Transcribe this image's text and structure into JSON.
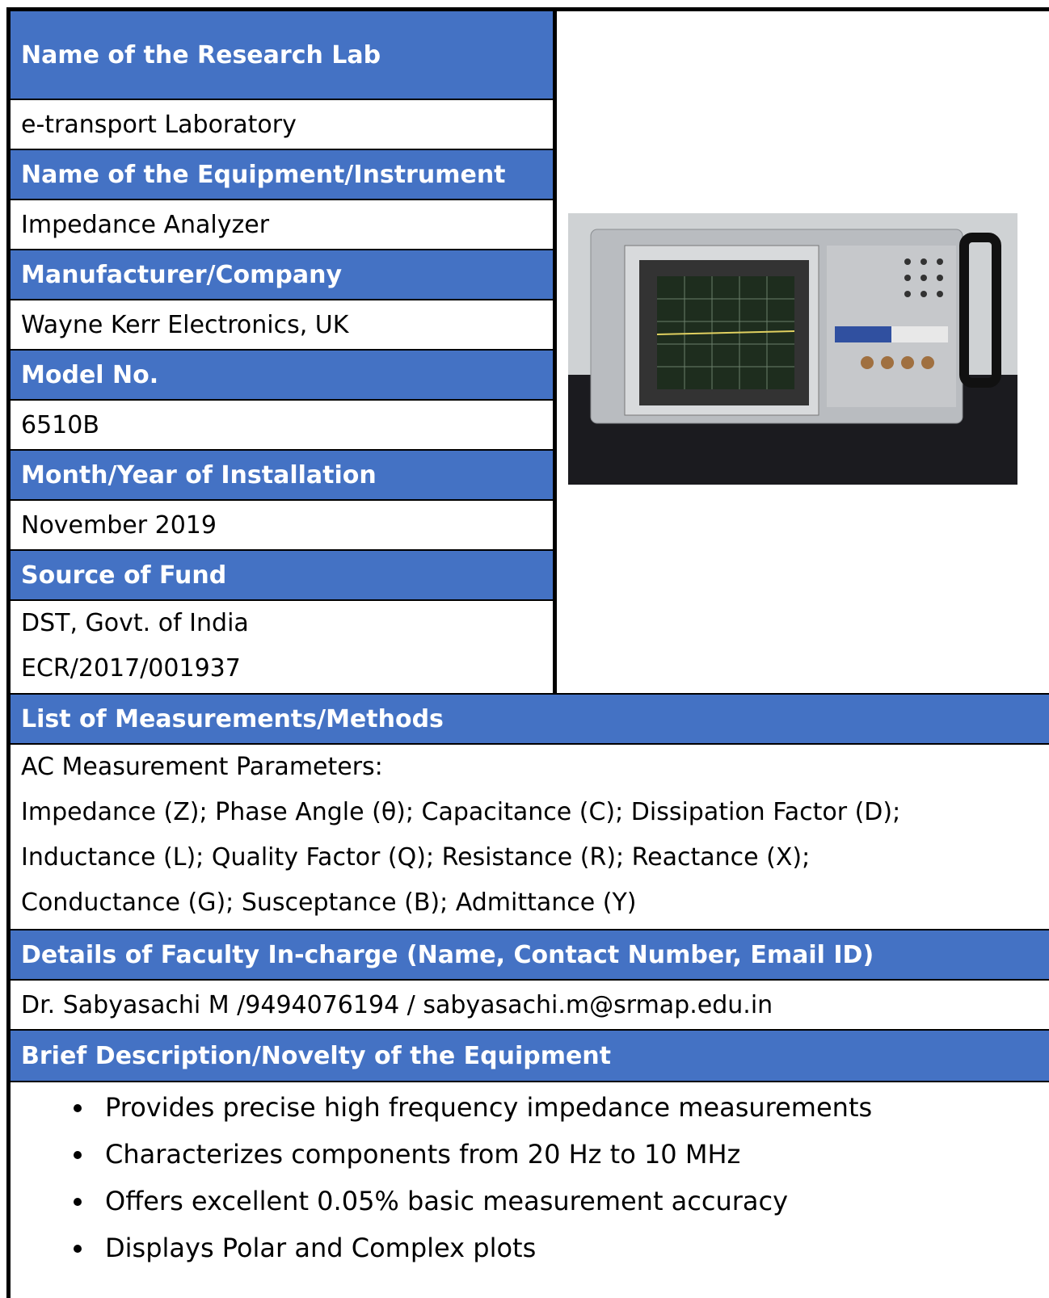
{
  "fields": [
    {
      "heading": "Name of the Research Lab",
      "lines": [
        "e-transport Laboratory"
      ]
    },
    {
      "heading": "Name of the Equipment/Instrument",
      "lines": [
        "Impedance Analyzer"
      ]
    },
    {
      "heading": "Manufacturer/Company",
      "lines": [
        "Wayne Kerr Electronics, UK"
      ]
    },
    {
      "heading": "Model No.",
      "lines": [
        "6510B"
      ]
    },
    {
      "heading": "Month/Year of Installation",
      "lines": [
        "November 2019"
      ]
    },
    {
      "heading": "Source of Fund",
      "lines": [
        "DST, Govt. of India",
        "ECR/2017/001937"
      ]
    },
    {
      "heading": "List of Measurements/Methods",
      "lines": [
        "AC Measurement Parameters:",
        "Impedance (Z); Phase Angle (θ); Capacitance (C); Dissipation Factor (D);",
        "Inductance (L); Quality Factor (Q); Resistance (R); Reactance (X);",
        "Conductance (G); Susceptance (B); Admittance (Y)"
      ]
    },
    {
      "heading": "Details of Faculty In-charge (Name, Contact Number, Email ID)",
      "lines": [
        "Dr. Sabyasachi M /9494076194 / sabyasachi.m@srmap.edu.in"
      ]
    },
    {
      "heading": "Brief Description/Novelty of the Equipment",
      "bullets": [
        "Provides precise high frequency impedance measurements",
        "Characterizes components from 20 Hz to 10 MHz",
        "Offers excellent 0.05% basic measurement accuracy",
        "Displays Polar and Complex plots"
      ]
    }
  ]
}
